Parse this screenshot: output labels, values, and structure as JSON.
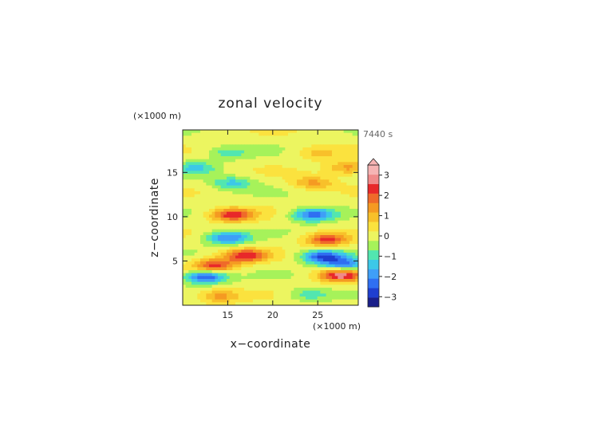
{
  "chart_data": {
    "type": "heatmap",
    "title": "zonal velocity",
    "time_label": "7440 s",
    "xlabel": "x−coordinate",
    "ylabel": "z−coordinate",
    "x_units": "(×1000 m)",
    "z_units": "(×1000 m)",
    "xlim": [
      10,
      29.5
    ],
    "zlim": [
      0,
      19.8
    ],
    "x_ticks": [
      15,
      20,
      25
    ],
    "z_ticks": [
      5,
      10,
      15
    ],
    "colorbar": {
      "levels": [
        -3.5,
        -3.0,
        -2.5,
        -2.0,
        -1.5,
        -1.0,
        -0.5,
        0.0,
        0.5,
        1.0,
        1.5,
        2.0,
        2.5,
        3.0,
        3.5
      ],
      "colors": [
        "#1a1f8a",
        "#1f3fd0",
        "#2f6ff2",
        "#3f9ff7",
        "#3cc8e8",
        "#52e6b0",
        "#a6f25a",
        "#ecf560",
        "#fbe23e",
        "#f8c02a",
        "#f59a22",
        "#ef6a2a",
        "#e8282a",
        "#f08a8a",
        "#f6b4b4"
      ],
      "tick_labels": [
        "3",
        "2",
        "1",
        "0",
        "−1",
        "−2",
        "−3"
      ],
      "tick_values": [
        3,
        2,
        1,
        0,
        -1,
        -2,
        -3
      ],
      "extend": "max"
    },
    "features": [
      {
        "x": 15.5,
        "z": 10.2,
        "value": 2.6
      },
      {
        "x": 24.5,
        "z": 10.2,
        "value": -2.6
      },
      {
        "x": 13.5,
        "z": 4.5,
        "value": 2.5
      },
      {
        "x": 17.0,
        "z": 5.6,
        "value": 2.6
      },
      {
        "x": 25.5,
        "z": 5.5,
        "value": -2.8
      },
      {
        "x": 28.0,
        "z": 4.6,
        "value": -2.4
      },
      {
        "x": 12.5,
        "z": 3.2,
        "value": -2.9
      },
      {
        "x": 15.0,
        "z": 7.6,
        "value": -2.3
      },
      {
        "x": 26.0,
        "z": 7.4,
        "value": 2.4
      },
      {
        "x": 27.5,
        "z": 3.4,
        "value": 3.0
      },
      {
        "x": 15.5,
        "z": 13.8,
        "value": -1.4
      },
      {
        "x": 24.5,
        "z": 13.8,
        "value": 1.4
      },
      {
        "x": 15.0,
        "z": 17.2,
        "value": -1.0
      },
      {
        "x": 25.0,
        "z": 17.2,
        "value": 1.0
      },
      {
        "x": 28.5,
        "z": 15.5,
        "value": 1.6
      },
      {
        "x": 11.5,
        "z": 15.5,
        "value": -1.2
      },
      {
        "x": 14.0,
        "z": 1.0,
        "value": 1.5
      },
      {
        "x": 24.0,
        "z": 1.2,
        "value": -1.2
      }
    ]
  }
}
